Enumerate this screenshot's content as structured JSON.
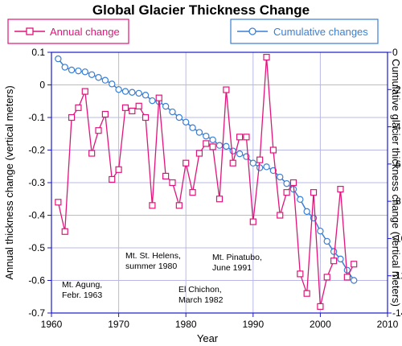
{
  "chart_data": {
    "type": "line",
    "title": "Global Glacier Thickness Change",
    "xlabel": "Year",
    "ylabel_left": "Annual thickness change (vertical meters)",
    "ylabel_right": "Cumulative glacier thickness change (vertical meters)",
    "xlim": [
      1960,
      2010
    ],
    "ylim_left": [
      -0.7,
      0.1
    ],
    "ylim_right": [
      -14,
      0
    ],
    "grid": true,
    "x_ticks": [
      "1960",
      "1970",
      "1980",
      "1990",
      "2000",
      "2010"
    ],
    "y_left_ticks": [
      "0.1",
      "0",
      "-0.1",
      "-0.2",
      "-0.3",
      "-0.4",
      "-0.5",
      "-0.6",
      "-0.7"
    ],
    "y_right_ticks": [
      "0",
      "-2",
      "-4",
      "-6",
      "-8",
      "-10",
      "-12",
      "-14"
    ],
    "colors": {
      "annual": "#e0157a",
      "cumulative": "#3a7fd5",
      "grid": "#b8b8e6",
      "axis": "#1a1acc"
    },
    "series": [
      {
        "name": "Annual change",
        "axis": "left",
        "marker": "square",
        "x": [
          1961,
          1962,
          1963,
          1964,
          1965,
          1966,
          1967,
          1968,
          1969,
          1970,
          1971,
          1972,
          1973,
          1974,
          1975,
          1976,
          1977,
          1978,
          1979,
          1980,
          1981,
          1982,
          1983,
          1984,
          1985,
          1986,
          1987,
          1988,
          1989,
          1990,
          1991,
          1992,
          1993,
          1994,
          1995,
          1996,
          1997,
          1998,
          1999,
          2000,
          2001,
          2002,
          2003,
          2004,
          2005
        ],
        "y": [
          -0.36,
          -0.45,
          -0.1,
          -0.07,
          -0.02,
          -0.21,
          -0.14,
          -0.09,
          -0.29,
          -0.26,
          -0.07,
          -0.08,
          -0.065,
          -0.1,
          -0.37,
          -0.04,
          -0.28,
          -0.3,
          -0.37,
          -0.24,
          -0.33,
          -0.21,
          -0.18,
          -0.19,
          -0.35,
          -0.015,
          -0.24,
          -0.16,
          -0.16,
          -0.42,
          -0.23,
          0.085,
          -0.2,
          -0.4,
          -0.33,
          -0.3,
          -0.58,
          -0.64,
          -0.33,
          -0.68,
          -0.59,
          -0.54,
          -0.32,
          -0.59,
          -0.55
        ]
      },
      {
        "name": "Cumulative changes",
        "axis": "right",
        "marker": "circle",
        "x": [
          1961,
          1962,
          1963,
          1964,
          1965,
          1966,
          1967,
          1968,
          1969,
          1970,
          1971,
          1972,
          1973,
          1974,
          1975,
          1976,
          1977,
          1978,
          1979,
          1980,
          1981,
          1982,
          1983,
          1984,
          1985,
          1986,
          1987,
          1988,
          1989,
          1990,
          1991,
          1992,
          1993,
          1994,
          1995,
          1996,
          1997,
          1998,
          1999,
          2000,
          2001,
          2002,
          2003,
          2004,
          2005
        ],
        "y": [
          -0.35,
          -0.8,
          -0.95,
          -1.0,
          -1.05,
          -1.2,
          -1.35,
          -1.5,
          -1.7,
          -2.0,
          -2.1,
          -2.15,
          -2.2,
          -2.3,
          -2.6,
          -2.65,
          -2.9,
          -3.2,
          -3.5,
          -3.75,
          -4.05,
          -4.3,
          -4.5,
          -4.7,
          -5.0,
          -5.05,
          -5.3,
          -5.45,
          -5.6,
          -5.95,
          -6.2,
          -6.15,
          -6.35,
          -6.7,
          -7.05,
          -7.35,
          -7.9,
          -8.55,
          -8.9,
          -9.6,
          -10.15,
          -10.7,
          -11.1,
          -11.7,
          -12.25
        ]
      }
    ],
    "annotations": [
      {
        "lines": [
          "Mt. Agung,",
          "Febr. 1963"
        ]
      },
      {
        "lines": [
          "Mt. St. Helens,",
          "summer 1980"
        ]
      },
      {
        "lines": [
          "El Chichon,",
          "March 1982"
        ]
      },
      {
        "lines": [
          "Mt. Pinatubo,",
          "June 1991"
        ]
      }
    ]
  }
}
